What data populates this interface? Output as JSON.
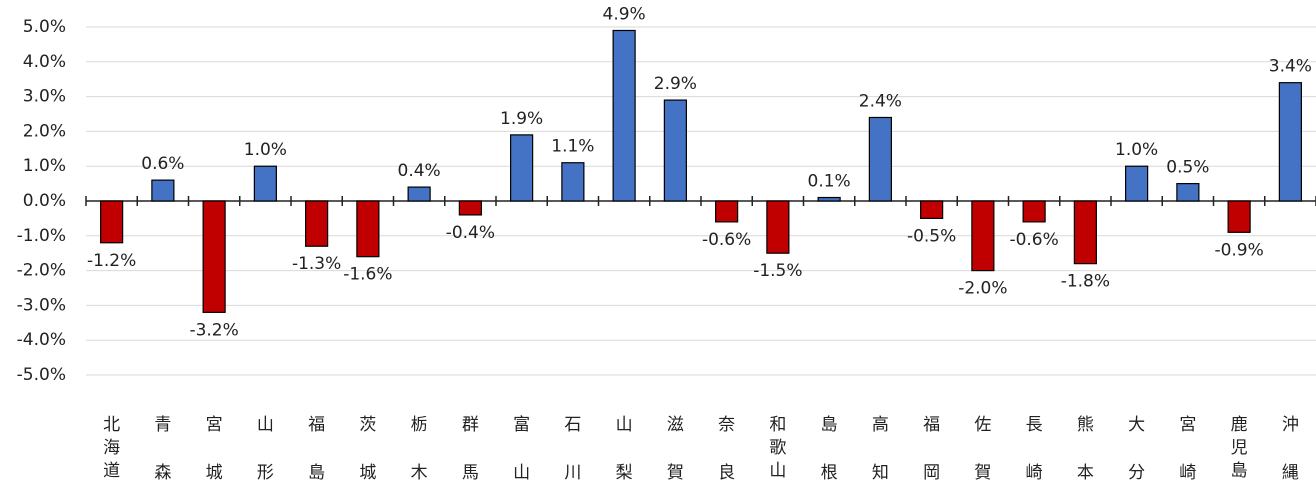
{
  "chart_data": {
    "type": "bar",
    "categories": [
      "北海道",
      "青森",
      "宮城",
      "山形",
      "福島",
      "茨城",
      "栃木",
      "群馬",
      "富山",
      "石川",
      "山梨",
      "滋賀",
      "奈良",
      "和歌山",
      "島根",
      "高知",
      "福岡",
      "佐賀",
      "長崎",
      "熊本",
      "大分",
      "宮崎",
      "鹿児島",
      "沖縄"
    ],
    "values": [
      -1.2,
      0.6,
      -3.2,
      1.0,
      -1.3,
      -1.6,
      0.4,
      -0.4,
      1.9,
      1.1,
      4.9,
      2.9,
      -0.6,
      -1.5,
      0.1,
      2.4,
      -0.5,
      -2.0,
      -0.6,
      -1.8,
      1.0,
      0.5,
      -0.9,
      3.4
    ],
    "value_labels": [
      "-1.2%",
      "0.6%",
      "-3.2%",
      "1.0%",
      "-1.3%",
      "-1.6%",
      "0.4%",
      "-0.4%",
      "1.9%",
      "1.1%",
      "4.9%",
      "2.9%",
      "-0.6%",
      "-1.5%",
      "0.1%",
      "2.4%",
      "-0.5%",
      "-2.0%",
      "-0.6%",
      "-1.8%",
      "1.0%",
      "0.5%",
      "-0.9%",
      "3.4%"
    ],
    "positive_color": "#4472c4",
    "negative_color": "#c00000",
    "ylim": [
      -5,
      5
    ],
    "yticks": [
      {
        "value": -5,
        "label": "-5.0%"
      },
      {
        "value": -4,
        "label": "-4.0%"
      },
      {
        "value": -3,
        "label": "-3.0%"
      },
      {
        "value": -2,
        "label": "-2.0%"
      },
      {
        "value": -1,
        "label": "-1.0%"
      },
      {
        "value": 0,
        "label": "0.0%"
      },
      {
        "value": 1,
        "label": "1.0%"
      },
      {
        "value": 2,
        "label": "2.0%"
      },
      {
        "value": 3,
        "label": "3.0%"
      },
      {
        "value": 4,
        "label": "4.0%"
      },
      {
        "value": 5,
        "label": "5.0%"
      }
    ],
    "grid": true
  }
}
